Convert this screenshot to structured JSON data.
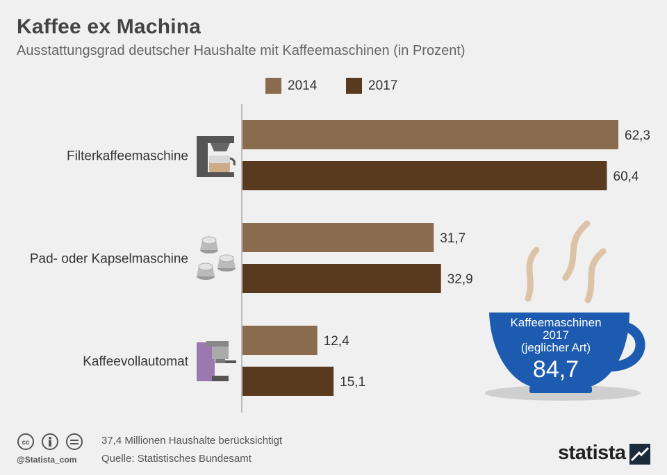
{
  "title": "Kaffee ex Machina",
  "subtitle": "Ausstattungsgrad deutscher Haushalte mit Kaffeemaschinen (in Prozent)",
  "colors": {
    "y2014": "#8b6b4d",
    "y2017": "#5a3a1e",
    "cup": "#1d5bb0",
    "steam": "#dcc3a8",
    "background": "#f0f0f0"
  },
  "chart_data": {
    "type": "bar",
    "orientation": "horizontal",
    "title": "Kaffee ex Machina",
    "subtitle": "Ausstattungsgrad deutscher Haushalte mit Kaffeemaschinen (in Prozent)",
    "categories": [
      "Filterkaffeemaschine",
      "Pad- oder Kapselmaschine",
      "Kaffeevollautomat"
    ],
    "category_icons": [
      "filter-coffee-machine-icon",
      "coffee-capsules-icon",
      "espresso-machine-icon"
    ],
    "series": [
      {
        "name": "2014",
        "values": [
          62.3,
          31.7,
          12.4
        ],
        "labels": [
          "62,3",
          "31,7",
          "12,4"
        ],
        "color": "#8b6b4d"
      },
      {
        "name": "2017",
        "values": [
          60.4,
          32.9,
          15.1
        ],
        "labels": [
          "60,4",
          "32,9",
          "15,1"
        ],
        "color": "#5a3a1e"
      }
    ],
    "xlim": [
      0,
      62.3
    ],
    "grid": false,
    "legend_position": "top"
  },
  "callout": {
    "label_line1": "Kaffeemaschinen",
    "label_line2": "2017",
    "label_line3": "(jeglicher Art)",
    "value": "84,7"
  },
  "footer": {
    "note": "37,4 Millionen Haushalte berücksichtigt",
    "source": "Quelle: Statistisches Bundesamt",
    "handle": "@Statista_com",
    "brand": "statista"
  }
}
